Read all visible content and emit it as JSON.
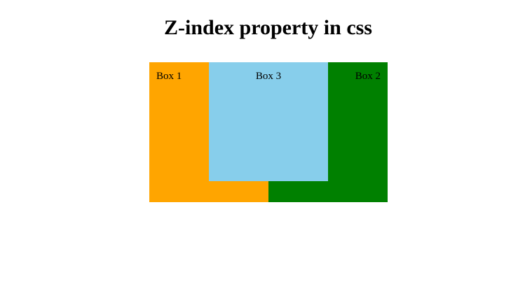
{
  "title": "Z-index property in css",
  "boxes": {
    "box1": {
      "label": "Box 1",
      "color": "#ffa500"
    },
    "box2": {
      "label": "Box 2",
      "color": "#008000"
    },
    "box3": {
      "label": "Box 3",
      "color": "#87ceeb"
    }
  }
}
